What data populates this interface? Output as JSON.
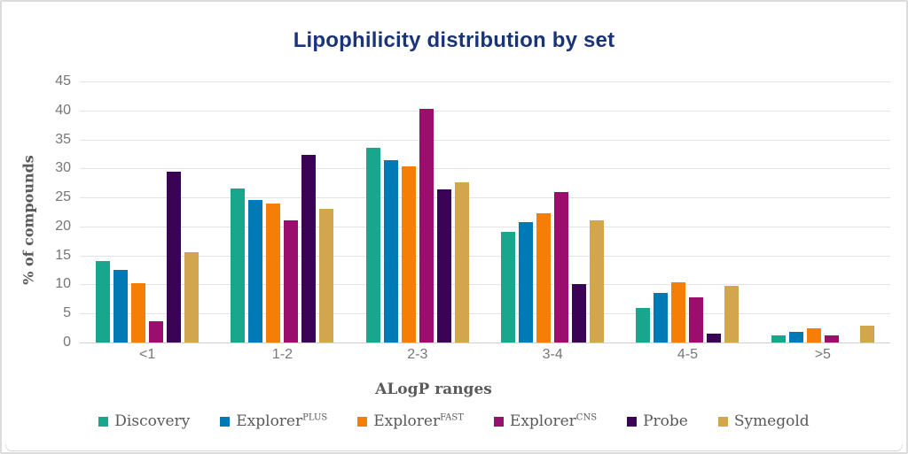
{
  "title": "Lipophilicity distribution by set",
  "colors": {
    "title_text": "#1a3478",
    "axis_text": "#5a5a5a",
    "tick_text": "#767676",
    "gridline": "#e4e4e4",
    "baseline": "#cfcfcf",
    "frame_border": "#dcdcdc"
  },
  "chart_data": {
    "type": "bar",
    "title": "Lipophilicity distribution by set",
    "xlabel": "ALogP ranges",
    "ylabel": "% of compounds",
    "ylim": [
      0,
      45
    ],
    "y_ticks": [
      0,
      5,
      10,
      15,
      20,
      25,
      30,
      35,
      40,
      45
    ],
    "grid": "horizontal",
    "legend_position": "bottom",
    "categories": [
      "<1",
      "1-2",
      "2-3",
      "3-4",
      "4-5",
      ">5"
    ],
    "series": [
      {
        "name": "Discovery",
        "sup": "",
        "color": "#18a78c",
        "values": [
          14.0,
          26.6,
          33.5,
          19.0,
          6.0,
          1.2
        ]
      },
      {
        "name": "Explorer",
        "sup": "PLUS",
        "color": "#0079b4",
        "values": [
          12.5,
          24.5,
          31.4,
          20.8,
          8.5,
          1.9
        ]
      },
      {
        "name": "Explorer",
        "sup": "FAST",
        "color": "#f57f06",
        "values": [
          10.2,
          24.0,
          30.4,
          22.2,
          10.3,
          2.4
        ]
      },
      {
        "name": "Explorer",
        "sup": "CNS",
        "color": "#9a0e6e",
        "values": [
          3.6,
          21.0,
          40.2,
          26.0,
          7.8,
          1.2
        ]
      },
      {
        "name": "Probe",
        "sup": "",
        "color": "#3a0356",
        "values": [
          29.5,
          32.4,
          26.4,
          10.0,
          1.5,
          0
        ]
      },
      {
        "name": "Symegold",
        "sup": "",
        "color": "#d1a64e",
        "values": [
          15.6,
          23.0,
          27.6,
          21.0,
          9.7,
          2.9
        ]
      }
    ]
  }
}
